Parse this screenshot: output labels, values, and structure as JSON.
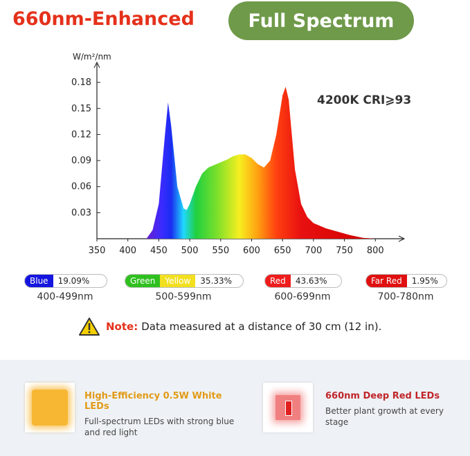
{
  "header": {
    "title": "660nm-Enhanced",
    "badge": "Full Spectrum"
  },
  "chart_data": {
    "type": "area",
    "ylabel": "W/m²/nm",
    "annotation": "4200K CRI⩾93",
    "x": [
      430,
      440,
      450,
      460,
      465,
      470,
      480,
      490,
      495,
      500,
      510,
      520,
      530,
      540,
      550,
      560,
      570,
      580,
      590,
      600,
      610,
      620,
      630,
      640,
      650,
      655,
      660,
      670,
      680,
      690,
      700,
      720,
      740,
      760,
      780,
      800
    ],
    "values": [
      0,
      0.01,
      0.04,
      0.12,
      0.157,
      0.13,
      0.06,
      0.035,
      0.033,
      0.04,
      0.06,
      0.075,
      0.082,
      0.085,
      0.088,
      0.091,
      0.095,
      0.097,
      0.097,
      0.093,
      0.086,
      0.082,
      0.09,
      0.12,
      0.165,
      0.175,
      0.16,
      0.08,
      0.04,
      0.025,
      0.018,
      0.012,
      0.008,
      0.004,
      0.001,
      0
    ],
    "xlim": [
      350,
      840
    ],
    "ylim": [
      0,
      0.2
    ],
    "xticks": [
      350,
      400,
      450,
      500,
      550,
      600,
      650,
      700,
      750,
      800
    ],
    "yticks": [
      0.03,
      0.06,
      0.09,
      0.12,
      0.15,
      0.18
    ]
  },
  "legend": [
    {
      "parts": [
        "Blue"
      ],
      "share": "19.09%",
      "range": "400-499nm"
    },
    {
      "parts": [
        "Green",
        "Yellow"
      ],
      "share": "35.33%",
      "range": "500-599nm"
    },
    {
      "parts": [
        "Red"
      ],
      "share": "43.63%",
      "range": "600-699nm"
    },
    {
      "parts": [
        "Far Red"
      ],
      "share": "1.95%",
      "range": "700-780nm"
    }
  ],
  "note": {
    "label": "Note:",
    "text": "Data measured at a distance of 30 cm (12 in)."
  },
  "features": [
    {
      "title": "High-Efficiency 0.5W White LEDs",
      "desc": "Full-spectrum LEDs with strong blue and red light"
    },
    {
      "title": "660nm Deep Red LEDs",
      "desc": "Better plant growth at every stage"
    }
  ]
}
